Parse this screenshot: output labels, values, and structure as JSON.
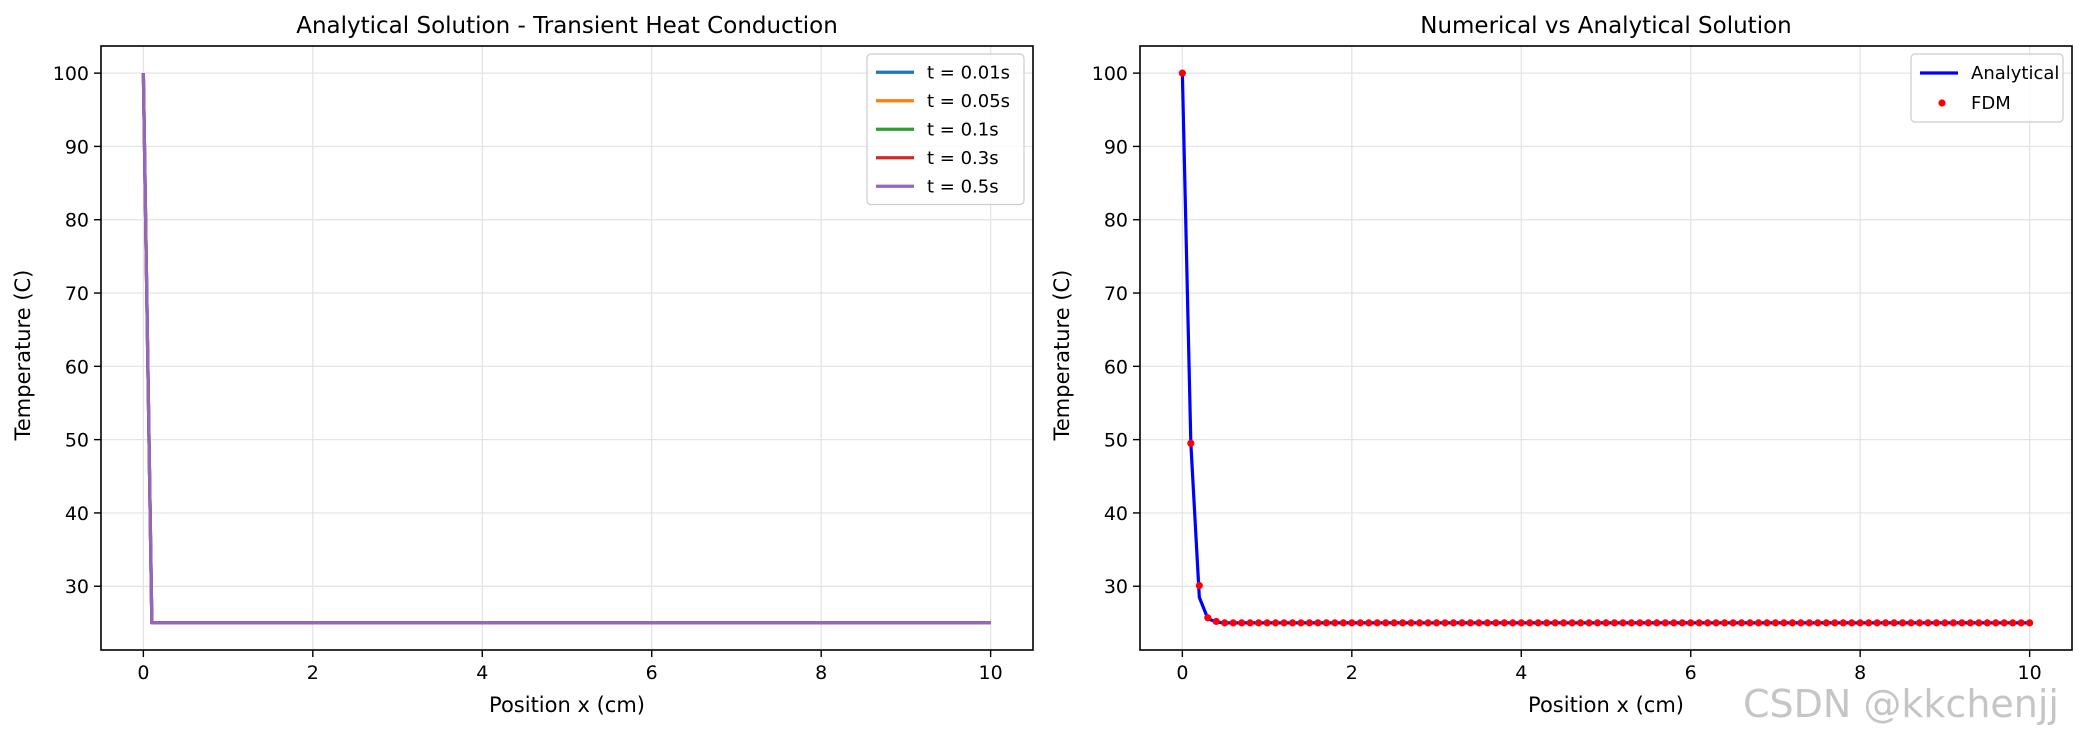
{
  "watermark": "CSDN @kkchenjj",
  "chart_data": [
    {
      "type": "line",
      "title": "Analytical Solution - Transient Heat Conduction",
      "xlabel": "Position x (cm)",
      "ylabel": "Temperature (C)",
      "xlim": [
        -0.5,
        10.5
      ],
      "ylim": [
        21.3,
        103.7
      ],
      "xticks": [
        0,
        2,
        4,
        6,
        8,
        10
      ],
      "yticks": [
        30,
        40,
        50,
        60,
        70,
        80,
        90,
        100
      ],
      "grid": true,
      "legend_position": "top-right",
      "series": [
        {
          "name": "t = 0.01s",
          "color": "#1f77b4",
          "x": [
            0,
            0.1,
            10
          ],
          "y": [
            100,
            25,
            25
          ]
        },
        {
          "name": "t = 0.05s",
          "color": "#ff7f0e",
          "x": [
            0,
            0.1,
            10
          ],
          "y": [
            100,
            25,
            25
          ]
        },
        {
          "name": "t = 0.1s",
          "color": "#2ca02c",
          "x": [
            0,
            0.1,
            10
          ],
          "y": [
            100,
            25,
            25
          ]
        },
        {
          "name": "t = 0.3s",
          "color": "#d62728",
          "x": [
            0,
            0.1,
            10
          ],
          "y": [
            100,
            25,
            25
          ]
        },
        {
          "name": "t = 0.5s",
          "color": "#9467bd",
          "x": [
            0,
            0.1,
            10
          ],
          "y": [
            100,
            25,
            25
          ]
        }
      ]
    },
    {
      "type": "line",
      "title": "Numerical vs Analytical Solution",
      "xlabel": "Position x (cm)",
      "ylabel": "Temperature (C)",
      "xlim": [
        -0.5,
        10.5
      ],
      "ylim": [
        21.3,
        103.7
      ],
      "xticks": [
        0,
        2,
        4,
        6,
        8,
        10
      ],
      "yticks": [
        30,
        40,
        50,
        60,
        70,
        80,
        90,
        100
      ],
      "grid": true,
      "legend_position": "top-right",
      "series": [
        {
          "name": "Analytical",
          "style": "line",
          "color": "#0000ff",
          "x": [
            0,
            0.1,
            0.2,
            0.3,
            0.4,
            0.5,
            10
          ],
          "y": [
            100,
            49.5,
            28.5,
            25.6,
            25.1,
            25.0,
            25.0
          ]
        },
        {
          "name": "FDM",
          "style": "points",
          "color": "#ff0000",
          "x_start": 0,
          "x_step": 0.1,
          "count": 101,
          "y_head": [
            100,
            49.5,
            30.1,
            25.7,
            25.2,
            25.0
          ],
          "y_rest": 25.0
        }
      ]
    }
  ]
}
